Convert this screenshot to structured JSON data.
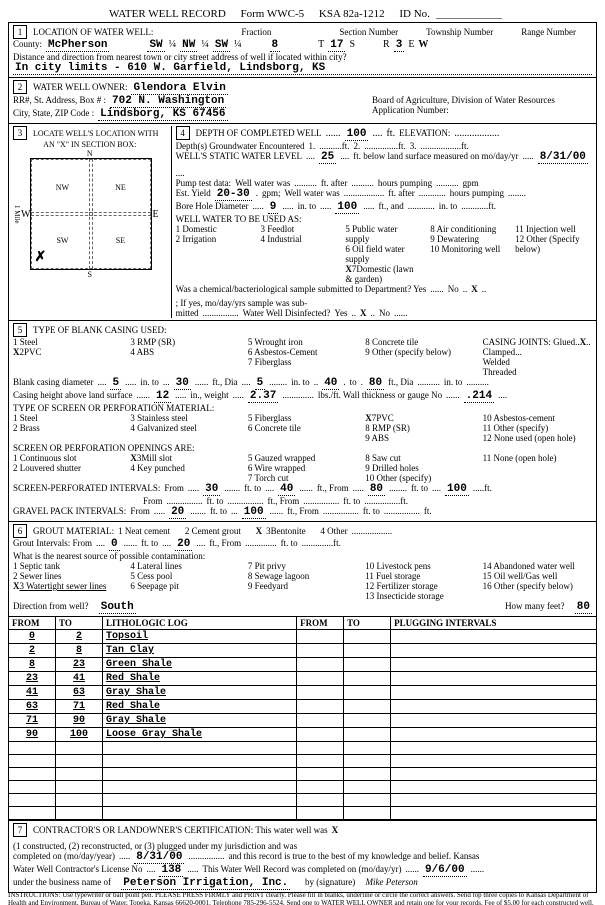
{
  "header": {
    "title": "WATER WELL RECORD",
    "form": "Form WWC-5",
    "ksa": "KSA 82a-1212",
    "id_label": "ID No."
  },
  "s1": {
    "title": "LOCATION OF WATER WELL:",
    "county_label": "County:",
    "county": "McPherson",
    "fraction_label": "Fraction",
    "frac1": "SW",
    "q1": "¼",
    "frac2": "NW",
    "q2": "¼",
    "frac3": "SW",
    "q3": "¼",
    "section_label": "Section Number",
    "section": "8",
    "township_label": "Township Number",
    "township": "17",
    "township_dir": "S",
    "range_label": "Range Number",
    "range": "3",
    "range_dir": "W",
    "dist_label": "Distance and direction from nearest town or city street address of well if located within city?",
    "dist": "In city limits - 610 W. Garfield, Lindsborg, KS",
    "T": "T",
    "R": "R",
    "E": "E"
  },
  "s2": {
    "title": "WATER WELL OWNER:",
    "owner": "Glendora Elvin",
    "addr_label": "RR#, St. Address, Box #  :",
    "addr": "702 N. Washington",
    "city_label": "City, State, ZIP Code       :",
    "city": "Lindsborg, KS  67456",
    "board": "Board of Agriculture, Division of Water Resources",
    "app_label": "Application Number:"
  },
  "s3": {
    "title": "LOCATE WELL'S LOCATION WITH",
    "sub": "AN \"X\" IN SECTION BOX:",
    "N": "N",
    "S": "S",
    "E": "E",
    "W": "W",
    "NW": "NW",
    "NE": "NE",
    "SW": "SW",
    "SE": "SE",
    "mile": "1 Mile"
  },
  "s4": {
    "title": "DEPTH OF COMPLETED WELL",
    "depth": "100",
    "ft": "ft.",
    "elev": "ELEVATION:",
    "gw_label": "Depth(s) Groundwater Encountered",
    "gw1_l": "1.",
    "gw2_l": "2.",
    "gw3_l": "3.",
    "swl_label": "WELL'S STATIC WATER LEVEL",
    "swl": "25",
    "swl_suffix": "ft. below land surface measured on mo/day/yr",
    "swl_date": "8/31/00",
    "pump_label": "Pump test data:",
    "pump_after": "Well water was",
    "after_l": "ft. after",
    "hp_l": "hours pumping",
    "gpm_l2": "gpm",
    "est_label": "Est. Yield",
    "est": "20-30",
    "gpm_l": "gpm;",
    "ww_l": "Well water was",
    "bh_label": "Bore Hole Diameter",
    "bh1": "9",
    "in_to": "in. to",
    "bh2": "100",
    "ft_and": "ft., and",
    "in_to2": "in. to",
    "use_label": "WELL WATER TO BE USED AS:",
    "u1": "1 Domestic",
    "u2": "2 Irrigation",
    "u3": "3 Feedlot",
    "u4": "4 Industrial",
    "u5": "5 Public water supply",
    "u6": "6 Oil field water supply",
    "u7x": "X",
    "u7": "7Domestic (lawn & garden)",
    "u8": "8 Air conditioning",
    "u9": "9 Dewatering",
    "u10": "10 Monitoring well",
    "u11": "11 Injection well",
    "u12": "12 Other (Specify below)",
    "chem_label": "Was a chemical/bacteriological sample submitted to Department? Yes",
    "no_l": "No",
    "x1": "X",
    "ifyes": "; If yes, mo/day/yrs sample was sub-",
    "mitted": "mitted",
    "disinf": "Water Well Disinfected?",
    "yes_l": "Yes",
    "no2": "No",
    "x2": "X"
  },
  "s5": {
    "title": "TYPE OF BLANK CASING USED:",
    "c1": "1 Steel",
    "c2x": "X",
    "c2": "2PVC",
    "c3": "3 RMP (SR)",
    "c4": "4 ABS",
    "c5": "5 Wrought iron",
    "c6": "6 Asbestos-Cement",
    "c7": "7 Fiberglass",
    "c8": "8 Concrete tile",
    "c9": "9 Other (specify below)",
    "joints": "CASING JOINTS: Glued",
    "jx": "X",
    "clamp": "Clamped",
    "weld": "Welded",
    "thread": "Threaded",
    "bcd_l": "Blank casing diameter",
    "bcd1": "5",
    "bcd2": "30",
    "bcd3": "5",
    "bcd4": "40",
    "bcd5": "80",
    "ftdia": "ft., Dia",
    "into": "in. to",
    "cah_l": "Casing height above land surface",
    "cah": "12",
    "inwt": "in., weight",
    "wt": "2.37",
    "lbs": "lbs./ft. Wall thickness or gauge No",
    "gauge": ".214",
    "perf_title": "TYPE OF SCREEN OR PERFORATION MATERIAL:",
    "p1": "1 Steel",
    "p2": "2 Brass",
    "p3": "3 Stainless steel",
    "p4": "4 Galvanized steel",
    "p5": "5 Fiberglass",
    "p6": "6 Concrete tile",
    "p7x": "X",
    "p7": "7PVC",
    "p8": "8 RMP (SR)",
    "p9": "9 ABS",
    "p10": "10 Asbestos-cement",
    "p11": "11 Other (specify)",
    "p12": "12 None used (open hole)",
    "open_title": "SCREEN OR PERFORATION OPENINGS ARE:",
    "o1": "1 Continuous slot",
    "o2": "2 Louvered shutter",
    "o3x": "X",
    "o3": "3Mill slot",
    "o4": "4 Key punched",
    "o5": "5 Gauzed wrapped",
    "o6": "6 Wire wrapped",
    "o7": "7 Torch cut",
    "o8": "8 Saw cut",
    "o9": "9 Drilled holes",
    "o10": "10 Other (specify)",
    "o11": "11 None (open hole)",
    "spi_l": "SCREEN-PERFORATED INTERVALS:",
    "from_l": "From",
    "to_l": "ft. to",
    "ftfrom": "ft., From",
    "spi_f1": "30",
    "spi_t1": "40",
    "spi_f2": "80",
    "spi_t2": "100",
    "gpi_l": "GRAVEL PACK INTERVALS:",
    "gpi_f1": "20",
    "gpi_t1": "100",
    "ft_end": "ft."
  },
  "s6": {
    "title": "GROUT MATERIAL:",
    "g1": "1 Neat cement",
    "g2": "2 Cement grout",
    "g3x": "X",
    "g3": "3Bentonite",
    "g4": "4 Other",
    "gi_l": "Grout Intervals: From",
    "gi_f": "0",
    "gi_t": "20",
    "ftto": "ft. to",
    "ftfrom": "ft., From",
    "contam_l": "What is the nearest source of possible contamination:",
    "n1": "1 Septic tank",
    "n2": "2 Sewer lines",
    "n3x": "X",
    "n3": "3 Watertight sewer lines",
    "n4": "4 Lateral lines",
    "n5": "5 Cess pool",
    "n6": "6 Seepage pit",
    "n7": "7 Pit privy",
    "n8": "8 Sewage lagoon",
    "n9": "9 Feedyard",
    "n10": "10 Livestock pens",
    "n11": "11 Fuel storage",
    "n12": "12 Fertilizer storage",
    "n13": "13 Insecticide storage",
    "n14": "14 Abandoned water well",
    "n15": "15 Oil well/Gas well",
    "n16": "16 Other (specify below)",
    "dir_l": "Direction from well?",
    "dir": "South",
    "howfar_l": "How many feet?",
    "howfar": "80"
  },
  "log": {
    "h_from": "FROM",
    "h_to": "TO",
    "h_lith": "LITHOLOGIC LOG",
    "h_plug": "PLUGGING INTERVALS",
    "rows": [
      {
        "f": "0",
        "t": "2",
        "d": "Topsoil"
      },
      {
        "f": "2",
        "t": "8",
        "d": "Tan Clay"
      },
      {
        "f": "8",
        "t": "23",
        "d": "Green Shale"
      },
      {
        "f": "23",
        "t": "41",
        "d": "Red Shale"
      },
      {
        "f": "41",
        "t": "63",
        "d": "Gray Shale"
      },
      {
        "f": "63",
        "t": "71",
        "d": "Red Shale"
      },
      {
        "f": "71",
        "t": "90",
        "d": "Gray Shale"
      },
      {
        "f": "90",
        "t": "100",
        "d": "Loose Gray Shale"
      }
    ]
  },
  "s7": {
    "title": "CONTRACTOR'S OR LANDOWNER'S CERTIFICATION: This water well was",
    "cx": "X",
    "c1": "(1 constructed, (2) reconstructed, or (3) plugged under my jurisdiction and was",
    "comp_l": "completed on (mo/day/year)",
    "comp": "8/31/00",
    "rec_l": "and this record is true to the best of my knowledge and belief. Kansas",
    "lic_l": "Water Well Contractor's License No",
    "lic": "138",
    "wwr_l": "This Water Well Record was completed on (mo/day/yr)",
    "wwr": "9/6/00",
    "bus_l": "under the business name of",
    "bus": "Peterson Irrigation, Inc.",
    "by_l": "by (signature)",
    "sig": "Mike Peterson"
  },
  "footer": "INSTRUCTIONS: Use typewriter or ball point pen. PLEASE PRESS FIRMLY and PRINT clearly. Please fill in blanks, underline or circle the correct answers. Send top three copies to Kansas Department of Health and Environment, Bureau of Water, Topeka, Kansas 66620-0001. Telephone 785-296-5524. Send one to WATER WELL OWNER and retain one for your records. Fee of $5.00 for each constructed well."
}
